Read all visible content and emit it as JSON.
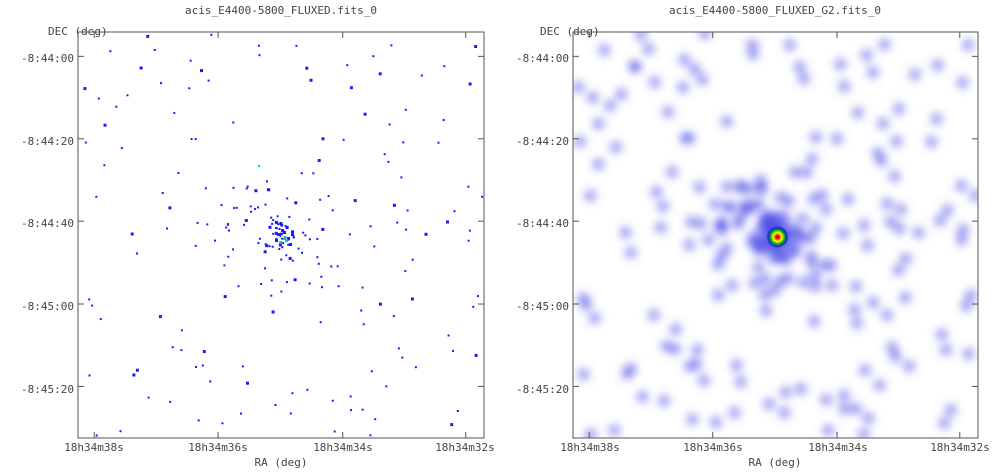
{
  "chart_data": [
    {
      "type": "heatmap",
      "title": "acis_E4400-5800_FLUXED.fits_0",
      "xlabel": "RA (deg)",
      "ylabel": "DEC (deg)",
      "x_ticks": [
        "18h34m38s",
        "18h34m36s",
        "18h34m34s",
        "18h34m32s"
      ],
      "y_ticks": [
        "-8:44:00",
        "-8:44:20",
        "-8:44:40",
        "-8:45:00",
        "-8:45:20"
      ],
      "grid": false,
      "colormap": [
        "#1a1aff",
        "#00d0a0",
        "#ffff00",
        "#ff2000",
        "#800000"
      ],
      "source": {
        "ra": "18h34m35.1s",
        "dec": "-8:44:43"
      }
    },
    {
      "type": "heatmap",
      "title": "acis_E4400-5800_FLUXED_G2.fits_0",
      "xlabel": "RA (deg)",
      "ylabel": "DEC (deg)",
      "x_ticks": [
        "18h34m38s",
        "18h34m36s",
        "18h34m34s",
        "18h34m32s"
      ],
      "y_ticks": [
        "-8:44:00",
        "-8:44:20",
        "-8:44:40",
        "-8:45:00",
        "-8:45:20"
      ],
      "grid": false,
      "smoothing": "gaussian",
      "colormap": [
        "#c8c8ff",
        "#5050e8",
        "#00b000",
        "#ffff00",
        "#ff2000",
        "#900000"
      ],
      "source": {
        "ra": "18h34m35.1s",
        "dec": "-8:44:43"
      }
    }
  ]
}
